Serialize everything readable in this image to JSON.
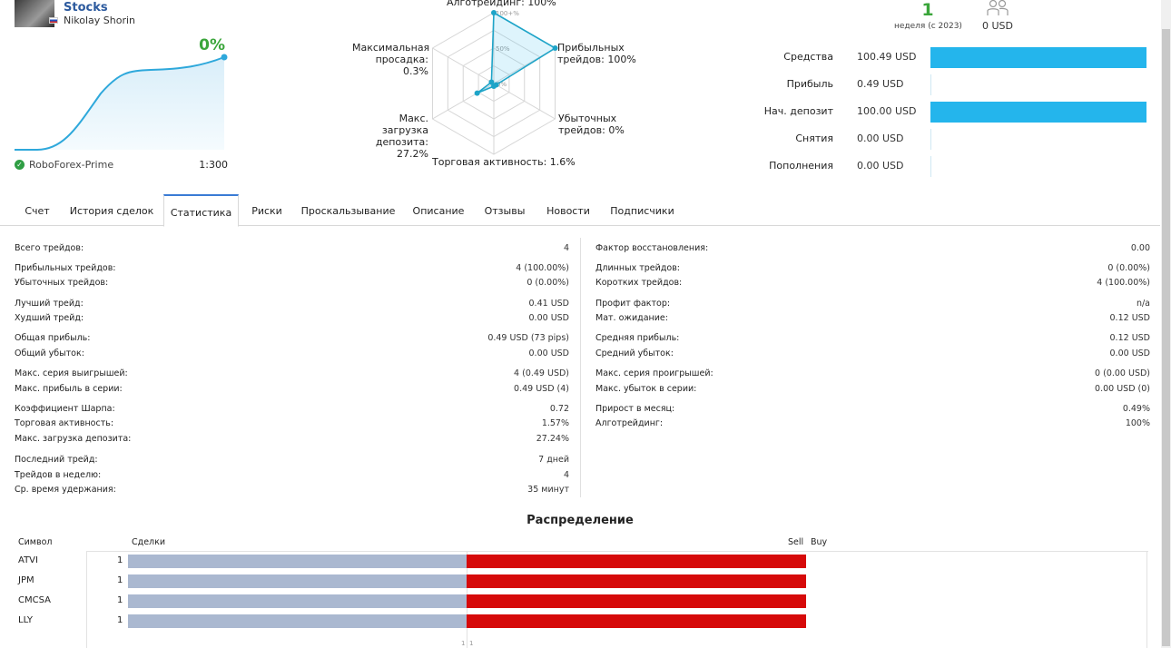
{
  "header": {
    "signal_name": "Stocks",
    "author": "Nikolay Shorin",
    "growth": "0%",
    "broker": "RoboForex-Prime",
    "leverage": "1:300"
  },
  "radar": {
    "center_label": "0%",
    "mid_label": "50%",
    "top_label": "100+%",
    "axes": [
      {
        "label": "Алготрейдинг: 100%",
        "value": 100
      },
      {
        "label": "Прибыльных трейдов: 100%",
        "value": 100
      },
      {
        "label": "Убыточных трейдов: 0%",
        "value": 0
      },
      {
        "label": "Торговая активность: 1.6%",
        "value": 1.6
      },
      {
        "label": "Макс. загрузка депозита: 27.2%",
        "value": 27.2
      },
      {
        "label": "Максимальная просадка: 0.3%",
        "value": 0.3
      }
    ],
    "axis_lines": {
      "algo": "Алготрейдинг: 100%",
      "profit_1": "Прибыльных",
      "profit_2": "трейдов: 100%",
      "loss_1": "Убыточных",
      "loss_2": "трейдов: 0%",
      "activity": "Торговая активность: 1.6%",
      "load_1": "Макс. загрузка",
      "load_2": "депозита: 27.2%",
      "dd_1": "Максимальная",
      "dd_2": "просадка: 0.3%"
    }
  },
  "summary": {
    "weeks": "1",
    "weeks_label": "неделя (с 2023)",
    "subscribers_value": "0 USD",
    "subscribers_icon": "people-icon"
  },
  "finance": [
    {
      "label": "Средства",
      "value": "100.49 USD",
      "fill": 1.0
    },
    {
      "label": "Прибыль",
      "value": "0.49 USD",
      "fill": 0.0
    },
    {
      "label": "Нач. депозит",
      "value": "100.00 USD",
      "fill": 1.0
    },
    {
      "label": "Снятия",
      "value": "0.00 USD",
      "fill": 0.0
    },
    {
      "label": "Пополнения",
      "value": "0.00 USD",
      "fill": 0.0
    }
  ],
  "tabs": [
    {
      "label": "Счет",
      "active": false
    },
    {
      "label": "История сделок",
      "active": false
    },
    {
      "label": "Статистика",
      "active": true
    },
    {
      "label": "Риски",
      "active": false
    },
    {
      "label": "Проскальзывание",
      "active": false
    },
    {
      "label": "Описание",
      "active": false
    },
    {
      "label": "Отзывы",
      "active": false
    },
    {
      "label": "Новости",
      "active": false
    },
    {
      "label": "Подписчики",
      "active": false
    }
  ],
  "stats_left": [
    {
      "label": "Всего трейдов:",
      "value": "4"
    },
    {
      "label": "Прибыльных трейдов:",
      "value": "4 (100.00%)"
    },
    {
      "label": "Убыточных трейдов:",
      "value": "0 (0.00%)"
    },
    {
      "label": "Лучший трейд:",
      "value": "0.41 USD"
    },
    {
      "label": "Худший трейд:",
      "value": "0.00 USD"
    },
    {
      "label": "Общая прибыль:",
      "value": "0.49 USD (73 pips)"
    },
    {
      "label": "Общий убыток:",
      "value": "0.00 USD"
    },
    {
      "label": "Макс. серия выигрышей:",
      "value": "4 (0.49 USD)"
    },
    {
      "label": "Макс. прибыль в серии:",
      "value": "0.49 USD (4)"
    },
    {
      "label": "Коэффициент Шарпа:",
      "value": "0.72"
    },
    {
      "label": "Торговая активность:",
      "value": "1.57%"
    },
    {
      "label": "Макс. загрузка депозита:",
      "value": "27.24%"
    },
    {
      "label": "Последний трейд:",
      "value": "7 дней"
    },
    {
      "label": "Трейдов в неделю:",
      "value": "4"
    },
    {
      "label": "Ср. время удержания:",
      "value": "35 минут"
    }
  ],
  "stats_right": [
    {
      "label": "Фактор восстановления:",
      "value": "0.00"
    },
    {
      "label": "Длинных трейдов:",
      "value": "0 (0.00%)"
    },
    {
      "label": "Коротких трейдов:",
      "value": "4 (100.00%)"
    },
    {
      "label": "Профит фактор:",
      "value": "n/a"
    },
    {
      "label": "Мат. ожидание:",
      "value": "0.12 USD"
    },
    {
      "label": "Средняя прибыль:",
      "value": "0.12 USD"
    },
    {
      "label": "Средний убыток:",
      "value": "0.00 USD"
    },
    {
      "label": "Макс. серия проигрышей:",
      "value": "0 (0.00 USD)"
    },
    {
      "label": "Макс. убыток в серии:",
      "value": "0.00 USD (0)"
    },
    {
      "label": "Прирост в месяц:",
      "value": "0.49%"
    },
    {
      "label": "Алготрейдинг:",
      "value": "100%"
    }
  ],
  "distribution": {
    "title": "Распределение",
    "col_symbol": "Символ",
    "col_deals": "Сделки",
    "col_sell": "Sell",
    "col_buy": "Buy",
    "axis_left": "1",
    "axis_right": "1",
    "rows": [
      {
        "symbol": "ATVI",
        "count": "1",
        "sell": 1,
        "buy": 1
      },
      {
        "symbol": "JPM",
        "count": "1",
        "sell": 1,
        "buy": 1
      },
      {
        "symbol": "CMCSA",
        "count": "1",
        "sell": 1,
        "buy": 1
      },
      {
        "symbol": "LLY",
        "count": "1",
        "sell": 1,
        "buy": 1
      }
    ]
  },
  "colors": {
    "accent": "#24b5ec",
    "growth": "#3aa53a",
    "sell": "#aab8d0",
    "buy": "#d60a0a"
  }
}
